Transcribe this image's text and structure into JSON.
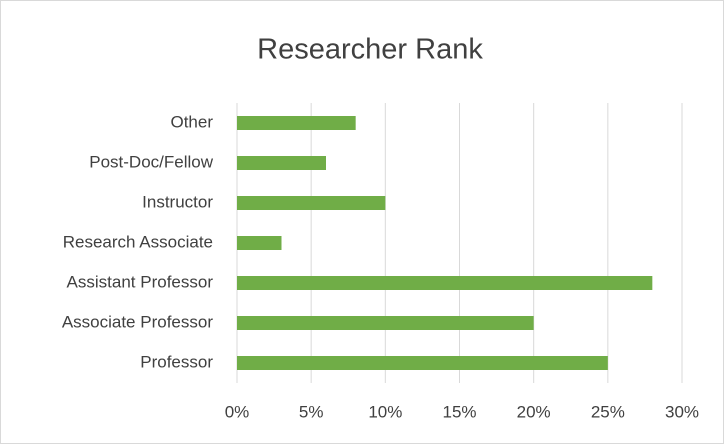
{
  "chart_data": {
    "type": "hbar",
    "title": "Researcher Rank",
    "categories": [
      "Other",
      "Post-Doc/Fellow",
      "Instructor",
      "Research Associate",
      "Assistant Professor",
      "Associate Professor",
      "Professor"
    ],
    "values": [
      8,
      6,
      10,
      3,
      28,
      20,
      25
    ],
    "color": "#70ad47",
    "xlim": [
      0,
      30
    ],
    "xticks": [
      {
        "value": 0,
        "label": "0%"
      },
      {
        "value": 5,
        "label": "5%"
      },
      {
        "value": 10,
        "label": "10%"
      },
      {
        "value": 15,
        "label": "15%"
      },
      {
        "value": 20,
        "label": "20%"
      },
      {
        "value": 25,
        "label": "25%"
      },
      {
        "value": 30,
        "label": "30%"
      }
    ],
    "grid": true
  }
}
